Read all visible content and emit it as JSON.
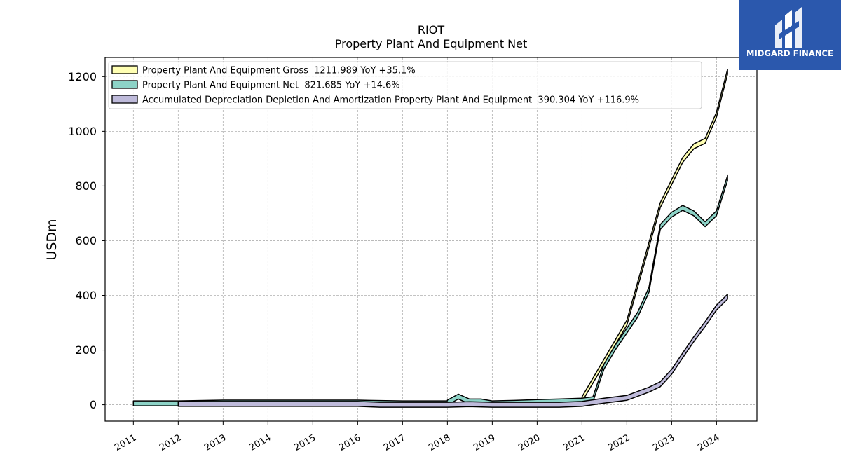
{
  "chart_data": {
    "type": "area",
    "title": "RIOT",
    "subtitle": "Property Plant And Equipment Net",
    "ylabel": "USDm",
    "xlabel": "",
    "ylim": [
      -60,
      1270
    ],
    "xlim": [
      2010.37,
      2024.9
    ],
    "yticks": [
      0,
      200,
      400,
      600,
      800,
      1000,
      1200
    ],
    "xticks": [
      2011,
      2012,
      2013,
      2014,
      2015,
      2016,
      2017,
      2018,
      2019,
      2020,
      2021,
      2022,
      2023,
      2024
    ],
    "grid": true,
    "legend_position": "top-left",
    "series": [
      {
        "name": "Property Plant And Equipment Gross  1211.989 YoY +35.1%",
        "color": "#ffffb3",
        "x": [
          "2021-01-01",
          "2022-01-01",
          "2022-09-30",
          "2023-03-31",
          "2023-06-30",
          "2023-09-30",
          "2023-12-31",
          "2024-03-31"
        ],
        "y": [
          20,
          300,
          730,
          895,
          945,
          965,
          1060,
          1218
        ]
      },
      {
        "name": "Property Plant And Equipment Net  821.685 YoY +14.6%",
        "color": "#8dd3c7",
        "x": [
          "2011-01-01",
          "2012-01-01",
          "2013-01-01",
          "2014-01-01",
          "2015-01-01",
          "2016-01-01",
          "2016-03-31",
          "2016-12-31",
          "2017-06-30",
          "2017-12-31",
          "2018-01-01",
          "2018-03-31",
          "2018-06-30",
          "2018-09-30",
          "2018-12-31",
          "2019-06-30",
          "2019-12-31",
          "2020-06-30",
          "2020-12-31",
          "2021-03-31",
          "2021-06-30",
          "2021-09-30",
          "2021-12-31",
          "2022-03-31",
          "2022-06-30",
          "2022-09-30",
          "2022-12-31",
          "2023-03-31",
          "2023-06-30",
          "2023-09-30",
          "2023-12-31",
          "2024-03-31"
        ],
        "y": [
          5,
          5,
          8,
          8,
          8,
          8,
          7,
          5,
          5,
          5,
          8,
          30,
          12,
          12,
          5,
          7,
          10,
          12,
          15,
          20,
          140,
          210,
          270,
          330,
          420,
          650,
          695,
          720,
          700,
          660,
          700,
          829
        ]
      },
      {
        "name": "Accumulated Depreciation Depletion And Amortization Property Plant And Equipment  390.304 YoY +116.9%",
        "color": "#bebada",
        "x": [
          "2012-01-01",
          "2013-01-01",
          "2014-01-01",
          "2015-01-01",
          "2016-01-01",
          "2016-06-30",
          "2017-01-01",
          "2018-01-01",
          "2018-06-30",
          "2019-01-01",
          "2019-06-30",
          "2020-01-01",
          "2020-06-30",
          "2020-12-31",
          "2021-06-30",
          "2021-12-31",
          "2022-06-30",
          "2022-09-30",
          "2022-12-31",
          "2023-03-31",
          "2023-06-30",
          "2023-09-30",
          "2023-12-31",
          "2024-03-31"
        ],
        "y": [
          3,
          3,
          3,
          3,
          3,
          0,
          0,
          0,
          2,
          0,
          0,
          0,
          0,
          3,
          15,
          25,
          55,
          75,
          120,
          180,
          240,
          295,
          355,
          395
        ]
      }
    ]
  }
}
